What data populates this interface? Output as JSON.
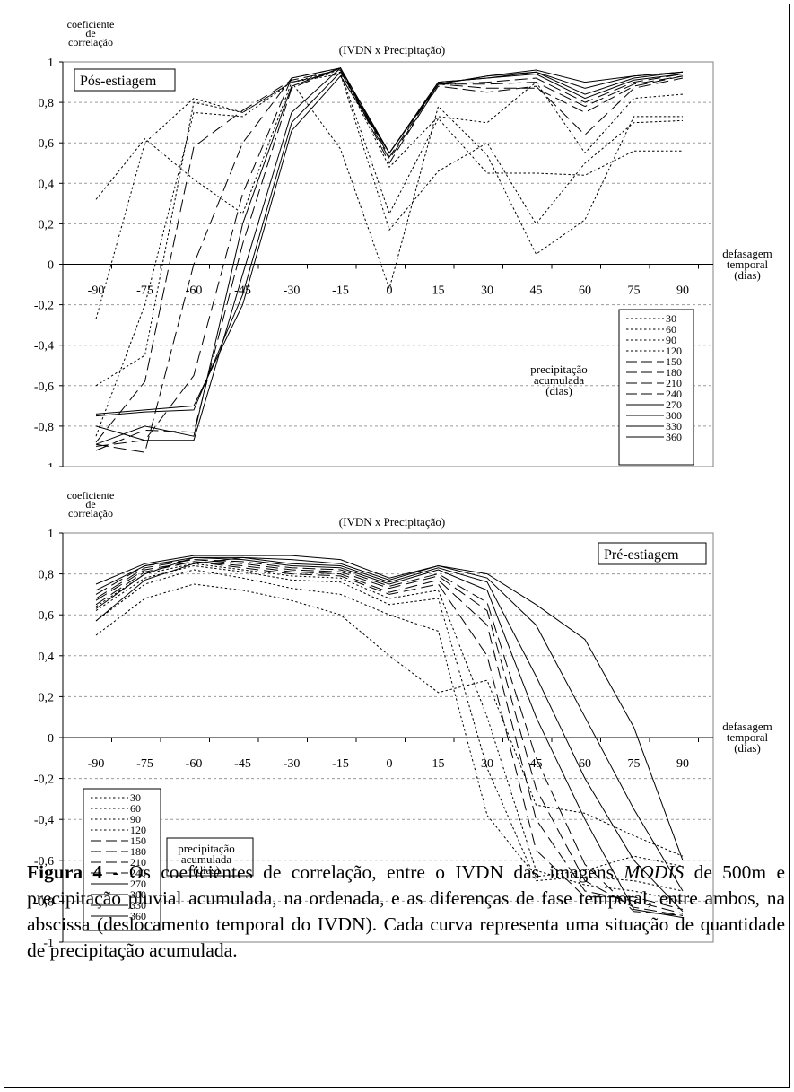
{
  "caption": {
    "figure_label": "Figura 4",
    "text_before": "  - Os coeficientes de correlação, entre o IVDN das imagens ",
    "text_emphasis": "MODIS",
    "text_after": " de 500m e  precipitação pluvial acumulada, na ordenada, e as diferenças de fase temporal, entre ambos, na abscissa (deslocamento temporal do IVDN). Cada curva representa uma situação de quantidade de precipitação acumulada."
  },
  "chart_data": [
    {
      "type": "line",
      "title": "(IVDN x Precipitação)",
      "panel_label": "Pós-estiagem",
      "ylabel_lines": [
        "coeficiente",
        "de",
        "correlação"
      ],
      "xlabel_lines": [
        "defasagem",
        "temporal",
        "(dias)"
      ],
      "legend_title_lines": [
        "precipitação",
        "acumulada",
        "(dias)"
      ],
      "legend_position": "bottom-right",
      "x": [
        -90,
        -75,
        -60,
        -45,
        -30,
        -15,
        0,
        15,
        30,
        45,
        60,
        75,
        90
      ],
      "x_ticks": [
        "-90",
        "-75",
        "-60",
        "-45",
        "-30",
        "-15",
        "0",
        "15",
        "30",
        "45",
        "60",
        "75",
        "90"
      ],
      "y_ticks": [
        "1",
        "0,8",
        "0,6",
        "0,4",
        "0,2",
        "0",
        "-0,2",
        "-0,4",
        "-0,6",
        "-0,8",
        "-1"
      ],
      "ylim": [
        -1,
        1
      ],
      "grid": true,
      "series": [
        {
          "name": "30",
          "style": "dotted",
          "values": [
            0.32,
            0.62,
            0.42,
            0.25,
            0.9,
            0.57,
            -0.12,
            0.78,
            0.54,
            0.05,
            0.22,
            0.73,
            0.73
          ]
        },
        {
          "name": "60",
          "style": "dotted",
          "values": [
            -0.27,
            0.6,
            0.82,
            0.75,
            0.9,
            0.94,
            0.17,
            0.46,
            0.6,
            0.2,
            0.5,
            0.7,
            0.71
          ]
        },
        {
          "name": "90",
          "style": "dotted",
          "values": [
            -0.6,
            -0.45,
            0.8,
            0.75,
            0.9,
            0.95,
            0.25,
            0.72,
            0.45,
            0.45,
            0.44,
            0.56,
            0.56
          ]
        },
        {
          "name": "120",
          "style": "dotted",
          "values": [
            -0.85,
            -0.2,
            0.75,
            0.73,
            0.9,
            0.96,
            0.48,
            0.73,
            0.7,
            0.9,
            0.55,
            0.82,
            0.84
          ]
        },
        {
          "name": "150",
          "style": "dashed",
          "values": [
            -0.88,
            -0.58,
            0.58,
            0.76,
            0.91,
            0.96,
            0.52,
            0.88,
            0.85,
            0.88,
            0.64,
            0.87,
            0.92
          ]
        },
        {
          "name": "180",
          "style": "dashed",
          "values": [
            -0.89,
            -0.93,
            0.0,
            0.6,
            0.92,
            0.97,
            0.5,
            0.89,
            0.87,
            0.87,
            0.75,
            0.88,
            0.93
          ]
        },
        {
          "name": "210",
          "style": "dashed",
          "values": [
            -0.9,
            -0.87,
            -0.55,
            0.35,
            0.92,
            0.97,
            0.53,
            0.89,
            0.89,
            0.9,
            0.78,
            0.89,
            0.93
          ]
        },
        {
          "name": "240",
          "style": "dashed",
          "values": [
            -0.92,
            -0.82,
            -0.83,
            0.1,
            0.87,
            0.97,
            0.55,
            0.89,
            0.9,
            0.92,
            0.8,
            0.9,
            0.94
          ]
        },
        {
          "name": "270",
          "style": "solid",
          "values": [
            -0.89,
            -0.8,
            -0.85,
            0.2,
            0.88,
            0.97,
            0.55,
            0.9,
            0.92,
            0.94,
            0.82,
            0.91,
            0.94
          ]
        },
        {
          "name": "300",
          "style": "solid",
          "values": [
            -0.8,
            -0.87,
            -0.87,
            -0.05,
            0.75,
            0.97,
            0.55,
            0.9,
            0.92,
            0.95,
            0.84,
            0.92,
            0.95
          ]
        },
        {
          "name": "330",
          "style": "solid",
          "values": [
            -0.75,
            -0.73,
            -0.72,
            -0.15,
            0.7,
            0.95,
            0.55,
            0.89,
            0.93,
            0.95,
            0.87,
            0.93,
            0.95
          ]
        },
        {
          "name": "360",
          "style": "solid",
          "values": [
            -0.74,
            -0.72,
            -0.7,
            -0.2,
            0.66,
            0.93,
            0.55,
            0.89,
            0.93,
            0.96,
            0.9,
            0.93,
            0.95
          ]
        }
      ]
    },
    {
      "type": "line",
      "title": "(IVDN x Precipitação)",
      "panel_label": "Pré-estiagem",
      "ylabel_lines": [
        "coeficiente",
        "de",
        "correlação"
      ],
      "xlabel_lines": [
        "defasagem",
        "temporal",
        "(dias)"
      ],
      "legend_title_lines": [
        "precipitação",
        "acumulada",
        "(dias)"
      ],
      "legend_position": "bottom-left",
      "x": [
        -90,
        -75,
        -60,
        -45,
        -30,
        -15,
        0,
        15,
        30,
        45,
        60,
        75,
        90
      ],
      "x_ticks": [
        "-90",
        "-75",
        "-60",
        "-45",
        "-30",
        "-15",
        "0",
        "15",
        "30",
        "45",
        "60",
        "75",
        "90"
      ],
      "y_ticks": [
        "1",
        "0,8",
        "0,6",
        "0,4",
        "0,2",
        "0",
        "-0,2",
        "-0,4",
        "-0,6",
        "-0,8",
        "-1"
      ],
      "ylim": [
        -1,
        1
      ],
      "grid": true,
      "series": [
        {
          "name": "30",
          "style": "dotted",
          "values": [
            0.5,
            0.68,
            0.75,
            0.72,
            0.67,
            0.6,
            0.4,
            0.22,
            0.28,
            -0.33,
            -0.37,
            -0.48,
            -0.58
          ]
        },
        {
          "name": "60",
          "style": "dotted",
          "values": [
            0.57,
            0.75,
            0.82,
            0.78,
            0.73,
            0.7,
            0.6,
            0.52,
            -0.38,
            -0.68,
            -0.65,
            -0.58,
            -0.63
          ]
        },
        {
          "name": "90",
          "style": "dotted",
          "values": [
            0.62,
            0.78,
            0.84,
            0.81,
            0.77,
            0.76,
            0.65,
            0.68,
            -0.15,
            -0.7,
            -0.68,
            -0.7,
            -0.75
          ]
        },
        {
          "name": "120",
          "style": "dotted",
          "values": [
            0.64,
            0.8,
            0.85,
            0.82,
            0.79,
            0.78,
            0.68,
            0.72,
            0.1,
            -0.65,
            -0.72,
            -0.75,
            -0.8
          ]
        },
        {
          "name": "150",
          "style": "dashed",
          "values": [
            0.65,
            0.81,
            0.86,
            0.83,
            0.8,
            0.79,
            0.7,
            0.75,
            0.4,
            -0.55,
            -0.78,
            -0.78,
            -0.84
          ]
        },
        {
          "name": "180",
          "style": "dashed",
          "values": [
            0.67,
            0.82,
            0.86,
            0.84,
            0.81,
            0.8,
            0.71,
            0.77,
            0.55,
            -0.4,
            -0.75,
            -0.8,
            -0.86
          ]
        },
        {
          "name": "210",
          "style": "dashed",
          "values": [
            0.68,
            0.83,
            0.87,
            0.85,
            0.82,
            0.81,
            0.73,
            0.79,
            0.62,
            -0.25,
            -0.7,
            -0.83,
            -0.87
          ]
        },
        {
          "name": "240",
          "style": "dashed",
          "values": [
            0.7,
            0.84,
            0.87,
            0.86,
            0.83,
            0.82,
            0.74,
            0.8,
            0.66,
            -0.1,
            -0.62,
            -0.85,
            -0.87
          ]
        },
        {
          "name": "270",
          "style": "solid",
          "values": [
            0.63,
            0.8,
            0.88,
            0.87,
            0.84,
            0.83,
            0.75,
            0.82,
            0.72,
            0.1,
            -0.4,
            -0.84,
            -0.88
          ]
        },
        {
          "name": "300",
          "style": "solid",
          "values": [
            0.72,
            0.84,
            0.88,
            0.88,
            0.85,
            0.84,
            0.76,
            0.83,
            0.76,
            0.3,
            -0.2,
            -0.6,
            -0.85
          ]
        },
        {
          "name": "330",
          "style": "solid",
          "values": [
            0.57,
            0.77,
            0.85,
            0.88,
            0.87,
            0.85,
            0.77,
            0.84,
            0.78,
            0.55,
            0.1,
            -0.35,
            -0.75
          ]
        },
        {
          "name": "360",
          "style": "solid",
          "values": [
            0.75,
            0.85,
            0.89,
            0.89,
            0.89,
            0.87,
            0.78,
            0.84,
            0.8,
            0.65,
            0.48,
            0.05,
            -0.6
          ]
        }
      ]
    }
  ]
}
